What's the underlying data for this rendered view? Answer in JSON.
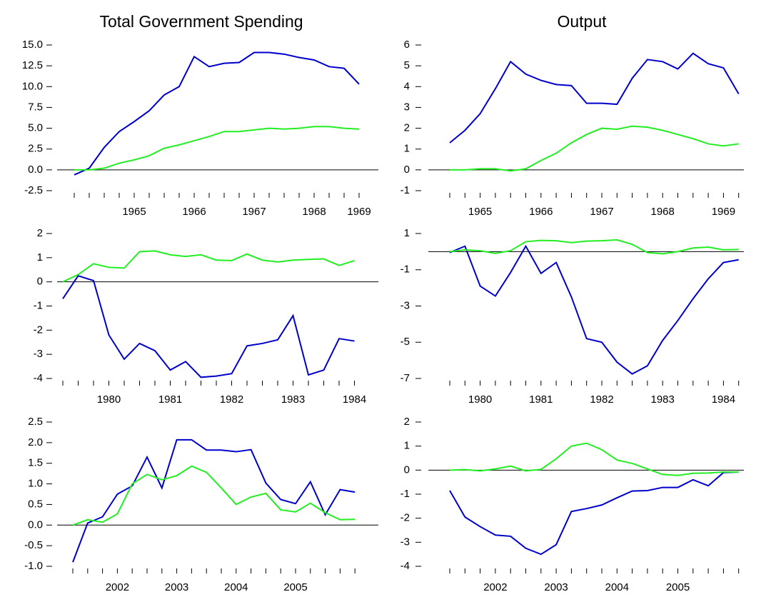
{
  "chart_data": [
    {
      "type": "line",
      "title": "Total Government Spending",
      "zero_line": true,
      "categories": [
        null,
        null,
        null,
        null,
        "1965",
        null,
        null,
        null,
        "1966",
        null,
        null,
        null,
        "1967",
        null,
        null,
        null,
        "1968",
        null,
        null,
        "1969"
      ],
      "ylim": [
        -2.5,
        15
      ],
      "yticks": [
        -2.5,
        {
          "value": 0,
          "label": "0.0"
        },
        2.5,
        {
          "value": 5,
          "label": "5.0"
        },
        7.5,
        {
          "value": 10,
          "label": "10.0"
        },
        12.5,
        {
          "value": 15,
          "label": "15.0"
        }
      ],
      "series": [
        {
          "color": "#0000cc",
          "values": [
            -0.6,
            0.2,
            2.7,
            4.6,
            5.8,
            7.1,
            9.0,
            10.0,
            13.6,
            12.4,
            12.8,
            12.9,
            14.1,
            14.1,
            13.9,
            13.5,
            13.2,
            12.4,
            12.2,
            10.3
          ]
        },
        {
          "color": "#22ee22",
          "values": [
            0.0,
            0.0,
            0.2,
            0.8,
            1.2,
            1.7,
            2.6,
            3.0,
            3.5,
            4.0,
            4.6,
            4.6,
            4.8,
            5.0,
            4.9,
            5.0,
            5.2,
            5.2,
            5.0,
            4.9
          ]
        }
      ]
    },
    {
      "type": "line",
      "title": "Output",
      "zero_line": true,
      "categories": [
        null,
        null,
        "1965",
        null,
        null,
        null,
        "1966",
        null,
        null,
        null,
        "1967",
        null,
        null,
        null,
        "1968",
        null,
        null,
        null,
        "1969",
        null
      ],
      "ylim": [
        -1,
        6
      ],
      "yticks": [
        -1,
        0,
        1,
        2,
        3,
        4,
        5,
        6
      ],
      "series": [
        {
          "color": "#0000cc",
          "values": [
            1.3,
            1.9,
            2.7,
            3.9,
            5.2,
            4.6,
            4.3,
            4.1,
            4.05,
            3.2,
            3.2,
            3.15,
            4.4,
            5.3,
            5.2,
            4.85,
            5.6,
            5.1,
            4.9,
            3.65
          ]
        },
        {
          "color": "#22ee22",
          "values": [
            0,
            0,
            0.05,
            0.05,
            -0.05,
            0.05,
            0.45,
            0.8,
            1.3,
            1.7,
            2.0,
            1.95,
            2.1,
            2.05,
            1.9,
            1.7,
            1.5,
            1.25,
            1.15,
            1.25
          ]
        }
      ]
    },
    {
      "type": "line",
      "zero_line": true,
      "categories": [
        null,
        null,
        null,
        "1980",
        null,
        null,
        null,
        "1981",
        null,
        null,
        null,
        "1982",
        null,
        null,
        null,
        "1983",
        null,
        null,
        null,
        "1984"
      ],
      "ylim": [
        -4,
        2
      ],
      "yticks": [
        -4,
        -3,
        -2,
        -1,
        0,
        1,
        2
      ],
      "series": [
        {
          "color": "#0000cc",
          "values": [
            -0.7,
            0.25,
            0.05,
            -2.2,
            -3.2,
            -2.55,
            -2.85,
            -3.65,
            -3.3,
            -3.95,
            -3.9,
            -3.8,
            -2.65,
            -2.55,
            -2.4,
            -1.4,
            -3.85,
            -3.65,
            -2.35,
            -2.45
          ]
        },
        {
          "color": "#22ee22",
          "values": [
            0,
            0.3,
            0.75,
            0.6,
            0.57,
            1.25,
            1.28,
            1.12,
            1.05,
            1.12,
            0.9,
            0.88,
            1.15,
            0.9,
            0.82,
            0.9,
            0.93,
            0.95,
            0.68,
            0.88
          ]
        }
      ]
    },
    {
      "type": "line",
      "zero_line": true,
      "categories": [
        null,
        null,
        "1980",
        null,
        null,
        null,
        "1981",
        null,
        null,
        null,
        "1982",
        null,
        null,
        null,
        "1983",
        null,
        null,
        null,
        "1984",
        null
      ],
      "ylim": [
        -7,
        1
      ],
      "yticks": [
        -7,
        -5,
        -3,
        -1,
        1
      ],
      "series": [
        {
          "color": "#0000cc",
          "values": [
            -0.05,
            0.3,
            -1.9,
            -2.45,
            -1.15,
            0.3,
            -1.2,
            -0.6,
            -2.5,
            -4.8,
            -5.0,
            -6.1,
            -6.75,
            -6.3,
            -4.9,
            -3.8,
            -2.6,
            -1.5,
            -0.6,
            -0.45
          ]
        },
        {
          "color": "#22ee22",
          "values": [
            0.0,
            0.1,
            0.05,
            -0.1,
            0.05,
            0.55,
            0.62,
            0.6,
            0.5,
            0.58,
            0.6,
            0.65,
            0.4,
            -0.05,
            -0.12,
            0.0,
            0.2,
            0.25,
            0.1,
            0.12
          ]
        }
      ]
    },
    {
      "type": "line",
      "zero_line": true,
      "categories": [
        null,
        null,
        null,
        "2002",
        null,
        null,
        null,
        "2003",
        null,
        null,
        null,
        "2004",
        null,
        null,
        null,
        "2005",
        null,
        null,
        null,
        null
      ],
      "ylim": [
        -1,
        2.5
      ],
      "yticks": [
        {
          "value": -1,
          "label": "-1.0"
        },
        -0.5,
        {
          "value": 0,
          "label": "0.0"
        },
        0.5,
        {
          "value": 1,
          "label": "1.0"
        },
        1.5,
        {
          "value": 2,
          "label": "2.0"
        },
        2.5
      ],
      "series": [
        {
          "color": "#0000cc",
          "values": [
            -0.9,
            0.05,
            0.2,
            0.75,
            0.95,
            1.65,
            0.9,
            2.07,
            2.07,
            1.82,
            1.82,
            1.78,
            1.83,
            1.02,
            0.62,
            0.52,
            1.05,
            0.25,
            0.86,
            0.8
          ]
        },
        {
          "color": "#22ee22",
          "values": [
            0,
            0.13,
            0.07,
            0.27,
            1.0,
            1.23,
            1.1,
            1.2,
            1.43,
            1.28,
            0.9,
            0.5,
            0.68,
            0.77,
            0.37,
            0.32,
            0.53,
            0.3,
            0.13,
            0.14
          ]
        }
      ]
    },
    {
      "type": "line",
      "zero_line": true,
      "categories": [
        null,
        null,
        null,
        "2002",
        null,
        null,
        null,
        "2003",
        null,
        null,
        null,
        "2004",
        null,
        null,
        null,
        "2005",
        null,
        null,
        null,
        null
      ],
      "ylim": [
        -4,
        2
      ],
      "yticks": [
        -4,
        -3,
        -2,
        -1,
        0,
        1,
        2
      ],
      "series": [
        {
          "color": "#0000cc",
          "values": [
            -0.85,
            -1.95,
            -2.35,
            -2.7,
            -2.75,
            -3.25,
            -3.5,
            -3.1,
            -1.72,
            -1.6,
            -1.45,
            -1.15,
            -0.87,
            -0.85,
            -0.72,
            -0.72,
            -0.4,
            -0.65,
            -0.1,
            -0.08
          ]
        },
        {
          "color": "#22ee22",
          "values": [
            0,
            0.02,
            -0.03,
            0.05,
            0.17,
            -0.03,
            0.03,
            0.47,
            1.0,
            1.12,
            0.85,
            0.42,
            0.28,
            0.05,
            -0.18,
            -0.22,
            -0.13,
            -0.12,
            -0.08,
            -0.08
          ]
        }
      ]
    }
  ]
}
